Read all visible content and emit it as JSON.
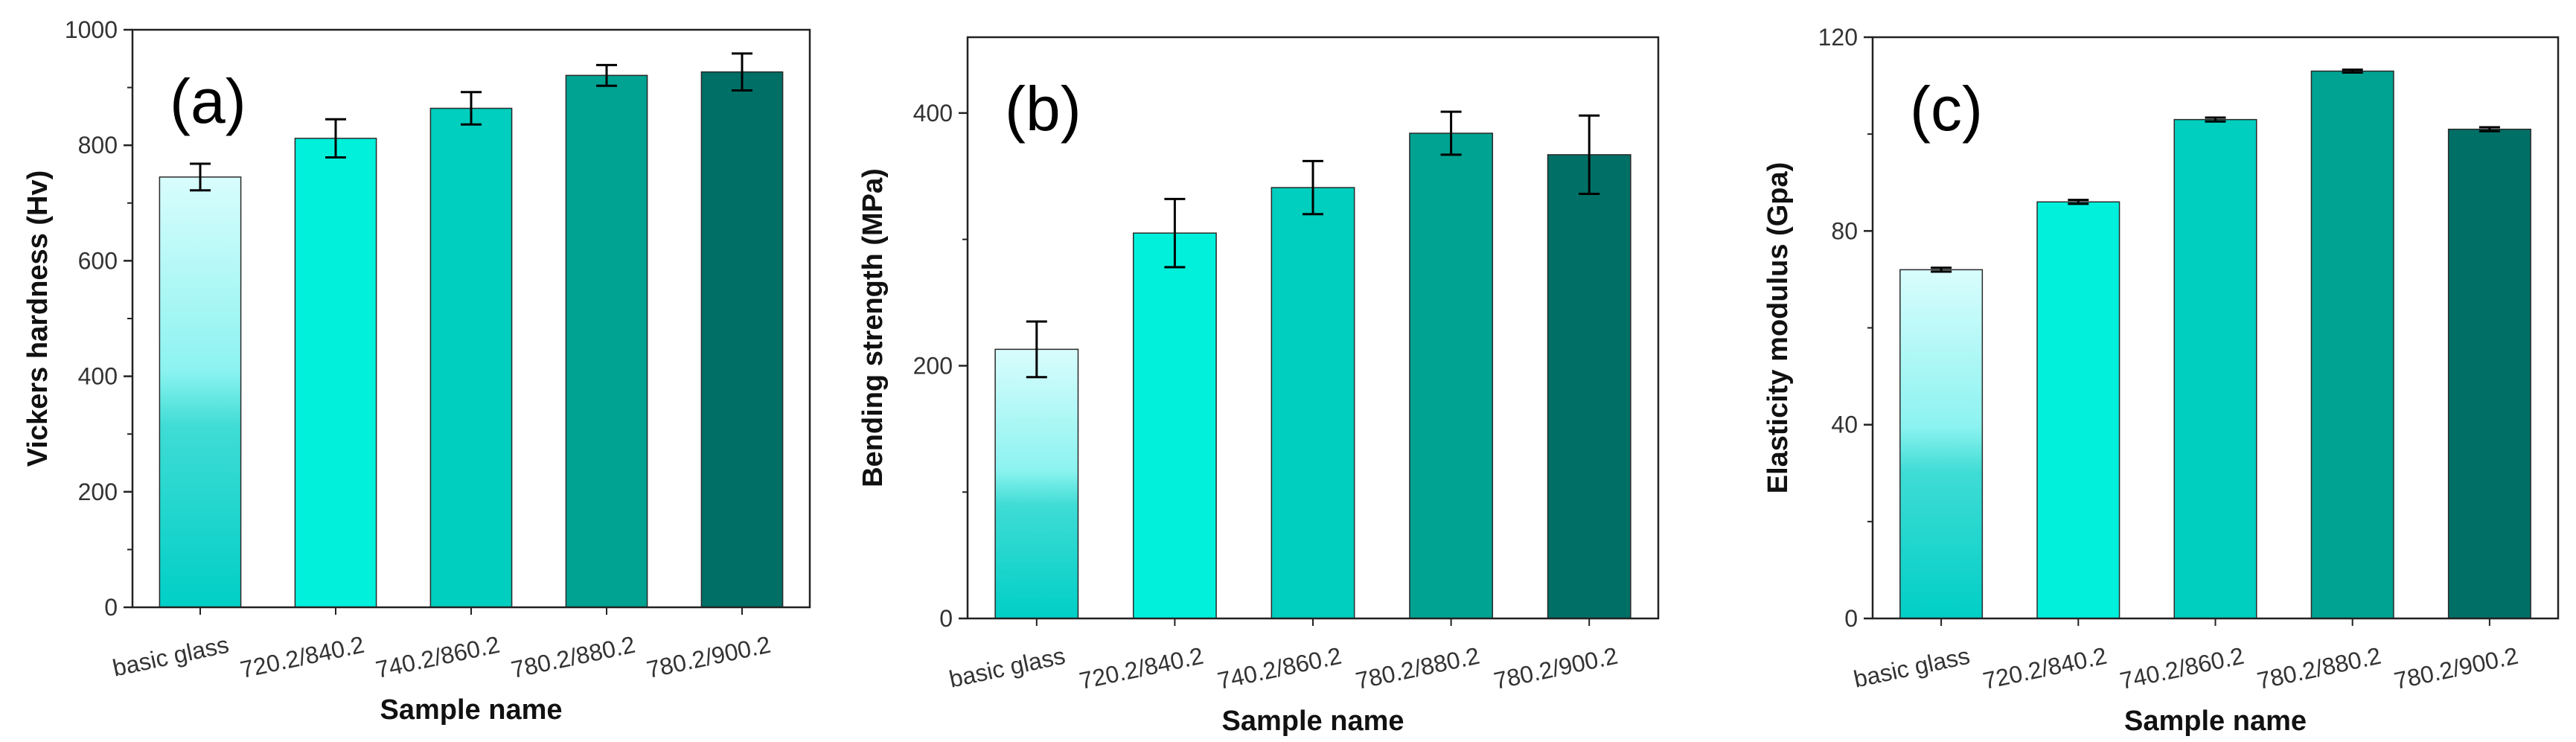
{
  "chart_data": [
    {
      "type": "bar",
      "panel_label": "(a)",
      "categories": [
        "basic glass",
        "720.2/840.2",
        "740.2/860.2",
        "780.2/880.2",
        "780.2/900.2"
      ],
      "values": [
        745,
        812,
        864,
        921,
        927
      ],
      "errors": [
        23,
        33,
        28,
        18,
        32
      ],
      "xlabel": "Sample name",
      "ylabel": "Vickers hardness (Hv)",
      "ylim": [
        0,
        1000
      ],
      "yticks": [
        0,
        200,
        400,
        600,
        800,
        1000
      ],
      "colors": [
        "#5fe3db",
        "#00f0dc",
        "#00cebe",
        "#00a291",
        "#006f66"
      ]
    },
    {
      "type": "bar",
      "panel_label": "(b)",
      "categories": [
        "basic glass",
        "720.2/840.2",
        "740.2/860.2",
        "780.2/880.2",
        "780.2/900.2"
      ],
      "values": [
        213,
        305,
        341,
        384,
        367
      ],
      "errors": [
        22,
        27,
        21,
        17,
        31
      ],
      "xlabel": "Sample name",
      "ylabel": "Bending strength (MPa)",
      "ylim": [
        0,
        460
      ],
      "yticks": [
        0,
        200,
        400
      ],
      "colors": [
        "#5fe3db",
        "#00f0dc",
        "#00cebe",
        "#00a291",
        "#006f66"
      ]
    },
    {
      "type": "bar",
      "panel_label": "(c)",
      "categories": [
        "basic glass",
        "720.2/840.2",
        "740.2/860.2",
        "780.2/880.2",
        "780.2/900.2"
      ],
      "values": [
        72,
        86,
        103,
        113,
        101
      ],
      "errors": [
        0.4,
        0.4,
        0.4,
        0.3,
        0.4
      ],
      "xlabel": "Sample name",
      "ylabel": "Elasticity modulus (Gpa)",
      "ylim": [
        0,
        120
      ],
      "yticks": [
        0,
        40,
        80,
        120
      ],
      "colors": [
        "#5fe3db",
        "#00f0dc",
        "#00cebe",
        "#00a291",
        "#006f66"
      ]
    }
  ]
}
